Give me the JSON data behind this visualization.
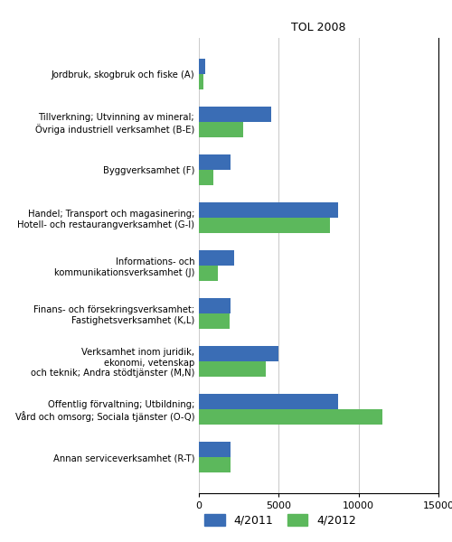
{
  "title": "TOL 2008",
  "categories": [
    "Jordbruk, skogbruk och fiske (A)",
    "Tillverkning; Utvinning av mineral;\nÖvriga industriell verksamhet (B-E)",
    "Byggverksamhet (F)",
    "Handel; Transport och magasinering;\nHotell- och restaurangverksamhet (G-I)",
    "Informations- och\nkommunikationsverksamhet (J)",
    "Finans- och försekringsverksamhet;\nFastighetsverksamhet (K,L)",
    "Verksamhet inom juridik,\nekonomi, vetenskap\noch teknik; Andra stödtjänster (M,N)",
    "Offentlig förvaltning; Utbildning;\nVård och omsorg; Sociala tjänster (O-Q)",
    "Annan serviceverksamhet (R-T)"
  ],
  "values_2011": [
    400,
    4500,
    2000,
    8700,
    2200,
    2000,
    5000,
    8700,
    2000
  ],
  "values_2012": [
    300,
    2800,
    900,
    8200,
    1200,
    1900,
    4200,
    11500,
    2000
  ],
  "color_2011": "#3a6db5",
  "color_2012": "#5cb85c",
  "legend_labels": [
    "4/2011",
    "4/2012"
  ],
  "xlim": [
    0,
    15000
  ],
  "xticks": [
    0,
    5000,
    10000,
    15000
  ],
  "bar_height": 0.32,
  "figsize": [
    5.0,
    6.0
  ],
  "dpi": 100,
  "background_color": "#ffffff"
}
